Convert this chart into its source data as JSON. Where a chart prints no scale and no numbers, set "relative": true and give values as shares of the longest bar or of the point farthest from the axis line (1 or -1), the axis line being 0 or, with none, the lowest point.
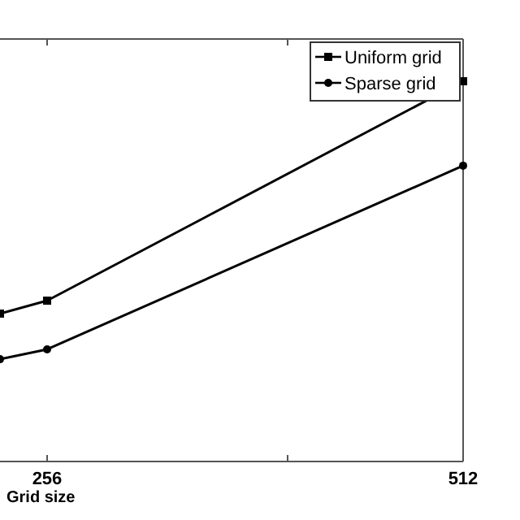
{
  "chart_data": {
    "type": "line",
    "xlabel": "Grid size",
    "relative": true,
    "x": [
      227,
      256,
      512
    ],
    "xlim": [
      227,
      512
    ],
    "xticks": [
      256,
      {
        "value": 404,
        "label": null
      },
      512
    ],
    "legend": "top right",
    "tick_labels": "x",
    "series": [
      {
        "name": "Uniform grid",
        "color": "#000000",
        "marker": "square",
        "values": [
          0.389,
          0.423,
          1
        ]
      },
      {
        "name": "Sparse grid",
        "color": "#000000",
        "marker": "circle",
        "values": [
          0.269,
          0.295,
          0.778
        ]
      }
    ]
  }
}
